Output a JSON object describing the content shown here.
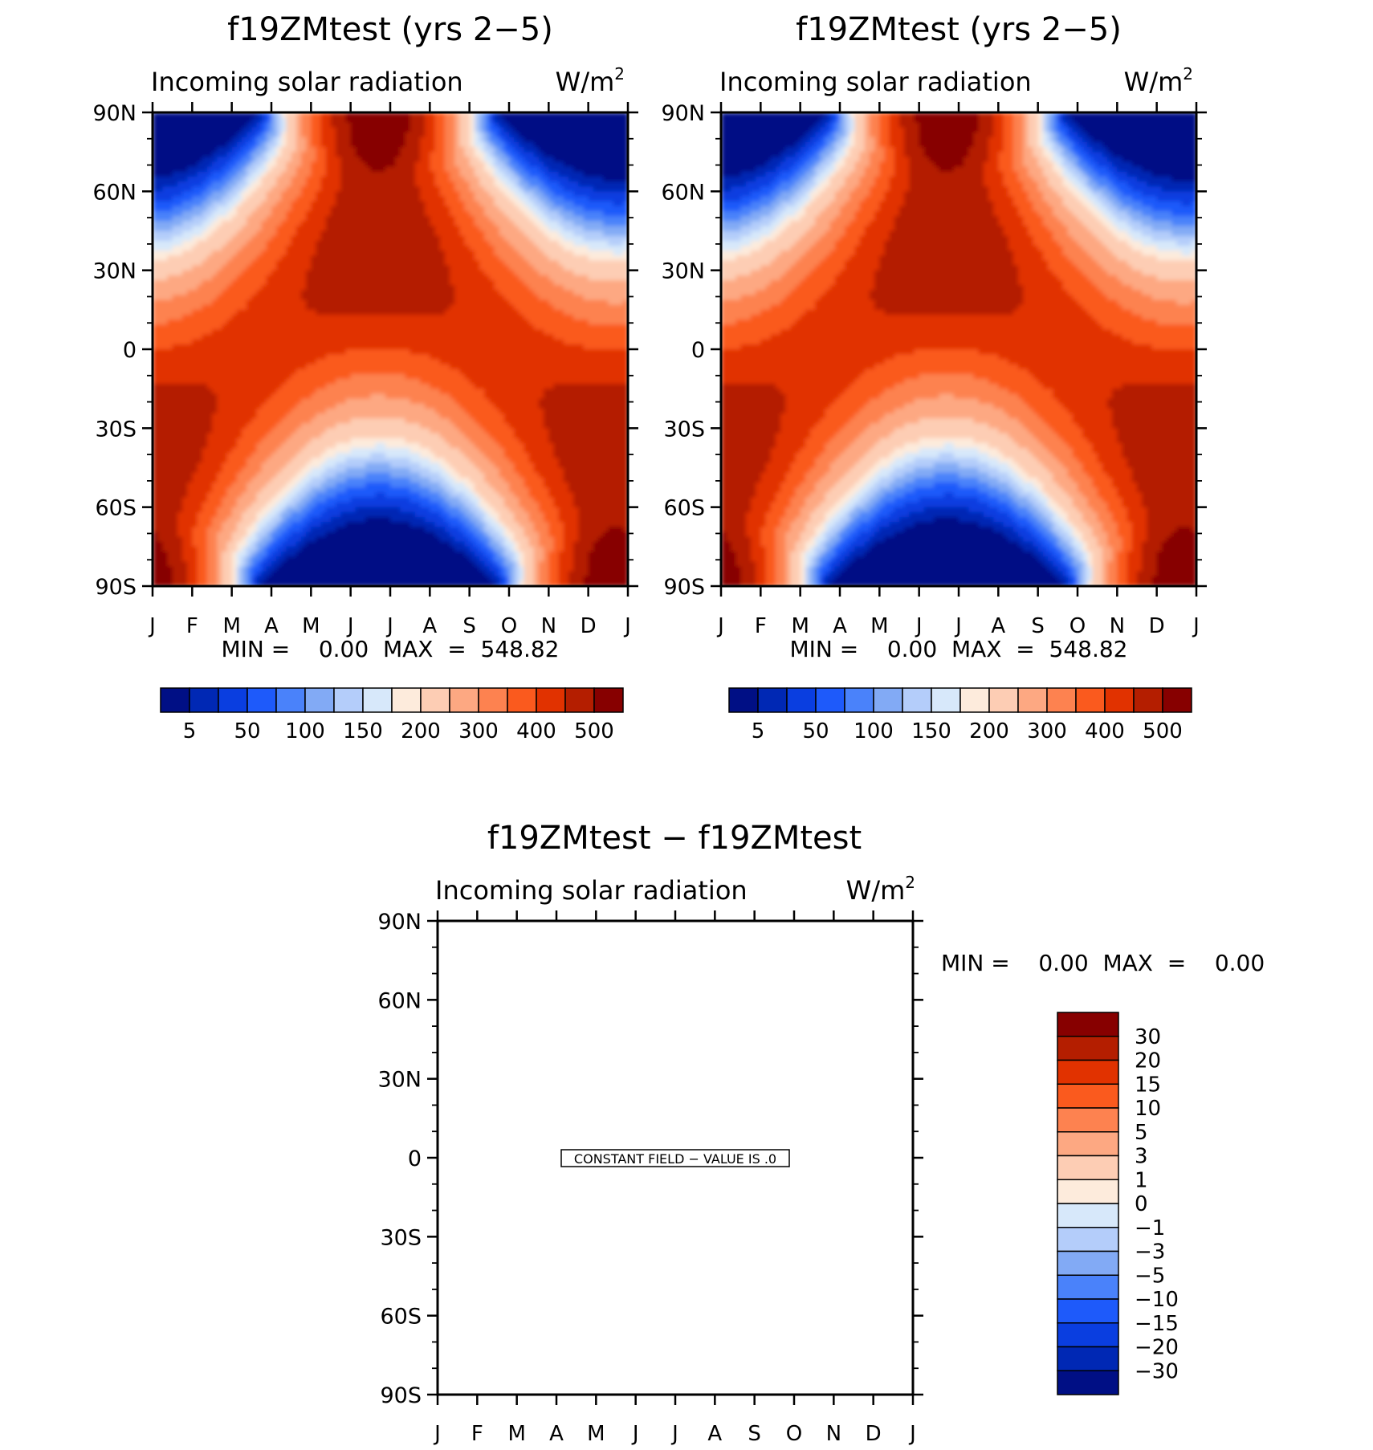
{
  "colors": {
    "palette": [
      "#000f85",
      "#0028b4",
      "#0a3ee0",
      "#1e5afa",
      "#4a82fa",
      "#82aaf5",
      "#b4cdfa",
      "#d7e8fa",
      "#fdebdc",
      "#fdcdb4",
      "#fda882",
      "#fd8250",
      "#fa5a1e",
      "#e13200",
      "#b41e00",
      "#870000"
    ]
  },
  "panels": [
    {
      "title": "f19ZMtest (yrs 2−5)",
      "subtitle_left": "Incoming solar radiation",
      "subtitle_right": "W/m",
      "subtitle_sup": "2",
      "stats": "MIN =    0.00  MAX  =  548.82"
    },
    {
      "title": "f19ZMtest (yrs 2−5)",
      "subtitle_left": "Incoming solar radiation",
      "subtitle_right": "W/m",
      "subtitle_sup": "2",
      "stats": "MIN =    0.00  MAX  =  548.82"
    },
    {
      "title": "f19ZMtest − f19ZMtest",
      "subtitle_left": "Incoming solar radiation",
      "subtitle_right": "W/m",
      "subtitle_sup": "2",
      "stats": "MIN =    0.00  MAX  =    0.00",
      "note": "CONSTANT FIELD − VALUE IS .0"
    }
  ],
  "chart_data": [
    {
      "type": "heatmap",
      "title": "f19ZMtest (yrs 2−5)",
      "xlabel": "",
      "ylabel": "",
      "x_ticks": [
        "J",
        "F",
        "M",
        "A",
        "M",
        "J",
        "J",
        "A",
        "S",
        "O",
        "N",
        "D",
        "J"
      ],
      "y_ticks": [
        "90N",
        "60N",
        "30N",
        "0",
        "30S",
        "60S",
        "90S"
      ],
      "ylim": [
        -90,
        90
      ],
      "units": "W/m2",
      "min": 0.0,
      "max": 548.82,
      "colorbar_labels": [
        "5",
        "50",
        "100",
        "150",
        "200",
        "300",
        "400",
        "500"
      ]
    },
    {
      "type": "heatmap",
      "title": "f19ZMtest (yrs 2−5)",
      "xlabel": "",
      "ylabel": "",
      "x_ticks": [
        "J",
        "F",
        "M",
        "A",
        "M",
        "J",
        "J",
        "A",
        "S",
        "O",
        "N",
        "D",
        "J"
      ],
      "y_ticks": [
        "90N",
        "60N",
        "30N",
        "0",
        "30S",
        "60S",
        "90S"
      ],
      "ylim": [
        -90,
        90
      ],
      "units": "W/m2",
      "min": 0.0,
      "max": 548.82,
      "colorbar_labels": [
        "5",
        "50",
        "100",
        "150",
        "200",
        "300",
        "400",
        "500"
      ]
    },
    {
      "type": "heatmap",
      "title": "f19ZMtest − f19ZMtest",
      "xlabel": "",
      "ylabel": "",
      "x_ticks": [
        "J",
        "F",
        "M",
        "A",
        "M",
        "J",
        "J",
        "A",
        "S",
        "O",
        "N",
        "D",
        "J"
      ],
      "y_ticks": [
        "90N",
        "60N",
        "30N",
        "0",
        "30S",
        "60S",
        "90S"
      ],
      "ylim": [
        -90,
        90
      ],
      "units": "W/m2",
      "min": 0.0,
      "max": 0.0,
      "constant_value": 0.0,
      "colorbar_labels": [
        "30",
        "20",
        "15",
        "10",
        "5",
        "3",
        "1",
        "0",
        "−1",
        "−3",
        "−5",
        "−10",
        "−15",
        "−20",
        "−30"
      ]
    }
  ]
}
